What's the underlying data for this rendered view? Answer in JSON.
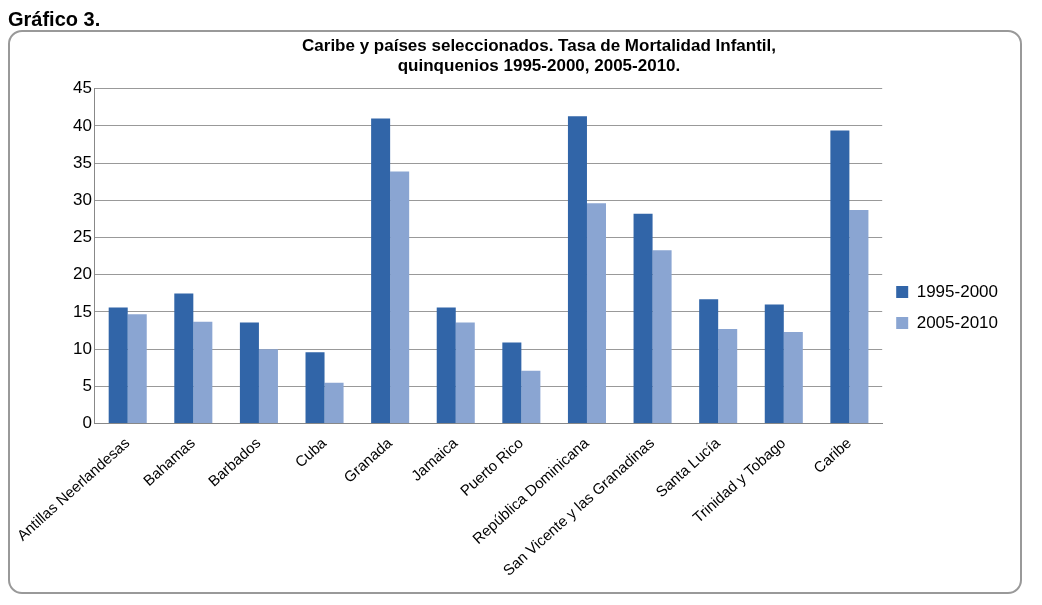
{
  "chart_data": {
    "type": "bar",
    "title": "Caribe y países seleccionados. Tasa de Mortalidad Infantil,\nquinquenios 1995-2000, 2005-2010.",
    "annotations": [
      "Gráfico 3."
    ],
    "categories": [
      "Antillas Neerlandesas",
      "Bahamas",
      "Barbados",
      "Cuba",
      "Granada",
      "Jamaica",
      "Puerto Rico",
      "República Dominicana",
      "San Vicente y las Granadinas",
      "Santa Lucía",
      "Trinidad y Tobago",
      "Caribe"
    ],
    "series": [
      {
        "name": "1995-2000",
        "color": "#3165a8",
        "values": [
          15.6,
          17.5,
          13.6,
          9.6,
          41.0,
          15.6,
          10.9,
          41.3,
          28.2,
          16.7,
          16.0,
          39.4
        ]
      },
      {
        "name": "2005-2010",
        "color": "#8aa5d2",
        "values": [
          14.7,
          13.7,
          10.0,
          5.5,
          33.9,
          13.6,
          7.1,
          29.6,
          23.3,
          12.7,
          12.3,
          28.7
        ]
      }
    ],
    "ylim": [
      0,
      45
    ],
    "yticks": [
      0,
      5,
      10,
      15,
      20,
      25,
      30,
      35,
      40,
      45
    ],
    "grid": "y",
    "legend": "right"
  }
}
